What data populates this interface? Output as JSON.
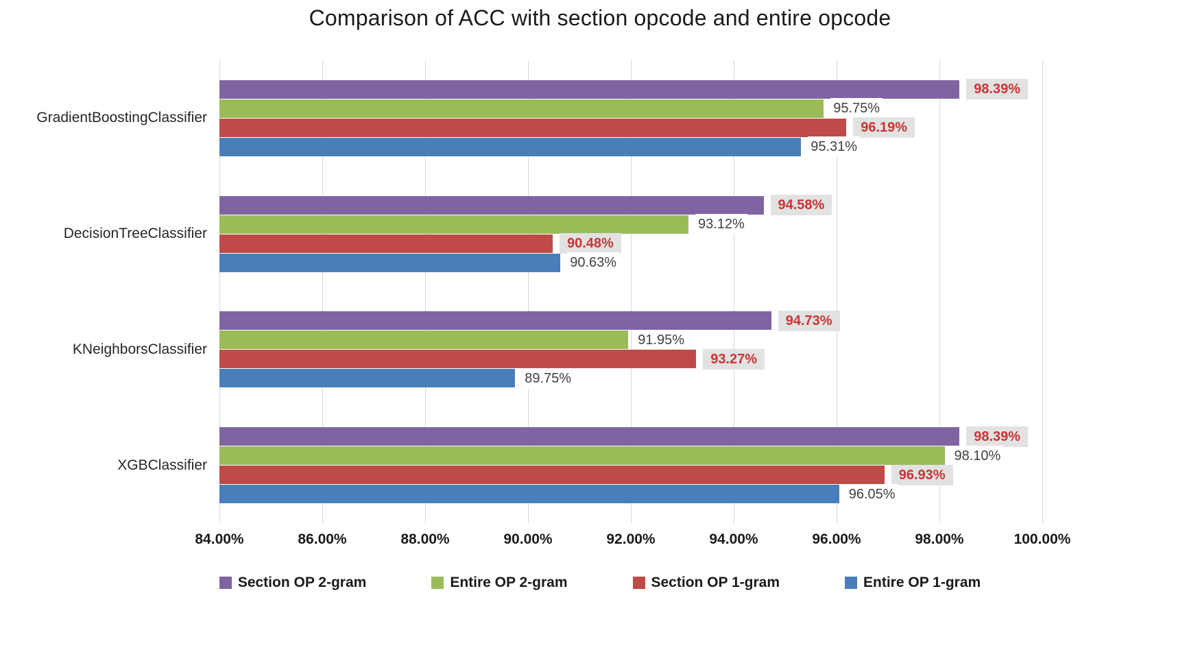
{
  "chart_data": {
    "type": "bar",
    "orientation": "horizontal",
    "title": "Comparison of ACC with section opcode and entire opcode",
    "categories": [
      "GradientBoostingClassifier",
      "DecisionTreeClassifier",
      "KNeighborsClassifier",
      "XGBClassifier"
    ],
    "series": [
      {
        "name": "Section OP 2-gram",
        "color": "#8064a2",
        "label_style": "boxed-red",
        "values": [
          98.39,
          94.58,
          94.73,
          98.39
        ],
        "labels": [
          "98.39%",
          "94.58%",
          "94.73%",
          "98.39%"
        ]
      },
      {
        "name": "Entire OP 2-gram",
        "color": "#9bbb59",
        "label_style": "plain-black",
        "values": [
          95.75,
          93.12,
          91.95,
          98.1
        ],
        "labels": [
          "95.75%",
          "93.12%",
          "91.95%",
          "98.10%"
        ]
      },
      {
        "name": "Section OP 1-gram",
        "color": "#be4b48",
        "label_style": "boxed-red",
        "values": [
          96.19,
          90.48,
          93.27,
          96.93
        ],
        "labels": [
          "96.19%",
          "90.48%",
          "93.27%",
          "96.93%"
        ]
      },
      {
        "name": "Entire OP 1-gram",
        "color": "#4a7ebb",
        "label_style": "plain-black",
        "values": [
          95.31,
          90.63,
          89.75,
          96.05
        ],
        "labels": [
          "95.31%",
          "90.63%",
          "89.75%",
          "96.05%"
        ]
      }
    ],
    "xlim": [
      84,
      100
    ],
    "x_ticks": [
      "84.00%",
      "86.00%",
      "88.00%",
      "90.00%",
      "92.00%",
      "94.00%",
      "96.00%",
      "98.00%",
      "100.00%"
    ],
    "grid": true,
    "legend_position": "bottom",
    "label_colors": {
      "boxed_bg": "#e2e2e2",
      "red_text": "#cc3333",
      "black_text": "#3f3f3f"
    },
    "gridline_color": "#d6d6d6"
  }
}
